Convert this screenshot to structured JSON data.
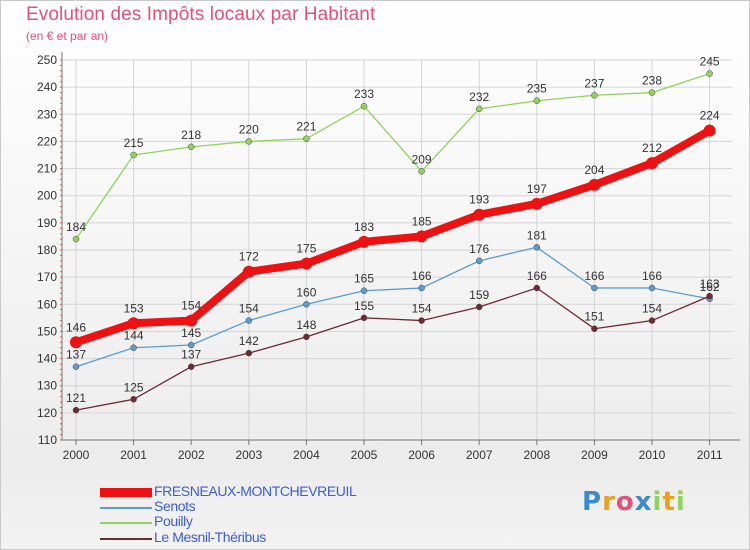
{
  "chart_data": {
    "type": "line",
    "title": "Evolution des Impôts locaux par Habitant",
    "subtitle": "(en € et par an)",
    "xlabel": "",
    "ylabel": "",
    "x": [
      "2000",
      "2001",
      "2002",
      "2003",
      "2004",
      "2005",
      "2006",
      "2007",
      "2008",
      "2009",
      "2010",
      "2011"
    ],
    "ylim": [
      110,
      250
    ],
    "yticks": [
      110,
      120,
      130,
      140,
      150,
      160,
      170,
      180,
      190,
      200,
      210,
      220,
      230,
      240,
      250
    ],
    "grid": true,
    "legend_position": "bottom-left",
    "series": [
      {
        "name": "Pouilly",
        "color": "#8fd45a",
        "values": [
          184,
          215,
          218,
          220,
          221,
          233,
          209,
          232,
          235,
          237,
          238,
          245
        ]
      },
      {
        "name": "Senots",
        "color": "#5b9bd0",
        "values": [
          137,
          144,
          145,
          154,
          160,
          165,
          166,
          176,
          181,
          166,
          166,
          162
        ]
      },
      {
        "name": "Le Mesnil-Théribus",
        "color": "#6e2a2e",
        "values": [
          121,
          125,
          137,
          142,
          148,
          155,
          154,
          159,
          166,
          151,
          154,
          163
        ]
      },
      {
        "name": "FRESNEAUX-MONTCHEVREUIL",
        "color": "#ee1111",
        "values": [
          146,
          153,
          154,
          172,
          175,
          183,
          185,
          193,
          197,
          204,
          212,
          224
        ]
      }
    ]
  },
  "legend": {
    "items": [
      {
        "label": "FRESNEAUX-MONTCHEVREUIL",
        "color": "#ee1111",
        "thick": true
      },
      {
        "label": "Senots",
        "color": "#5b9bd0",
        "thick": false
      },
      {
        "label": "Pouilly",
        "color": "#8fd45a",
        "thick": false
      },
      {
        "label": "Le Mesnil-Théribus",
        "color": "#6e2a2e",
        "thick": false
      }
    ]
  },
  "logo": {
    "letters": [
      "P",
      "r",
      "o",
      "x",
      "i",
      "t",
      "i"
    ],
    "colors": [
      "#3a8ad0",
      "#e8a020",
      "#e0527c",
      "#3a8ad0",
      "#8fd45a",
      "#e8a020",
      "#8fd45a"
    ]
  }
}
